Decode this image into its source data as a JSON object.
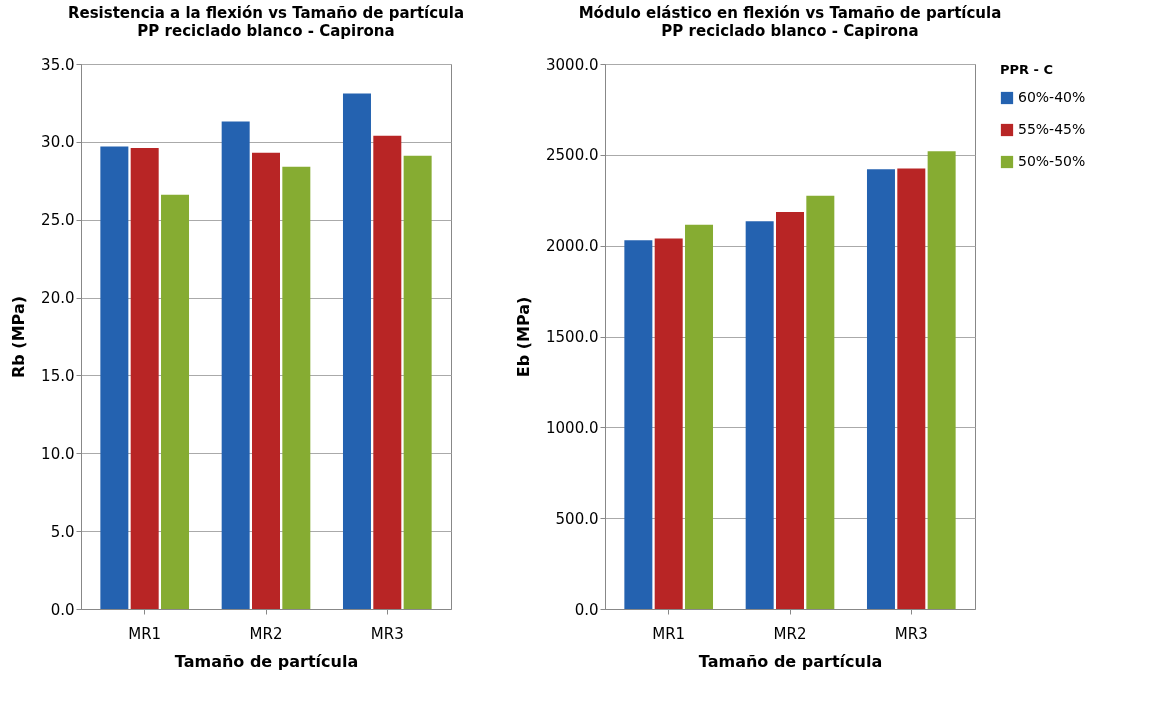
{
  "chart_data": [
    {
      "type": "bar",
      "title": "Resistencia a la flexión vs Tamaño de partícula",
      "subtitle": "PP reciclado blanco - Capirona",
      "xlabel": "Tamaño de partícula",
      "ylabel": "Rb (MPa)",
      "categories": [
        "MR1",
        "MR2",
        "MR3"
      ],
      "series": [
        {
          "color": "#2462b0",
          "values": [
            29.7,
            31.3,
            33.1
          ]
        },
        {
          "color": "#b82525",
          "values": [
            29.6,
            29.3,
            30.4
          ]
        },
        {
          "color": "#86ac32",
          "values": [
            26.6,
            28.4,
            29.1
          ]
        }
      ],
      "ylim": [
        0,
        35
      ],
      "yticks": [
        {
          "value": 0,
          "label": "0.0"
        },
        {
          "value": 5,
          "label": "5.0"
        },
        {
          "value": 10,
          "label": "10.0"
        },
        {
          "value": 15,
          "label": "15.0"
        },
        {
          "value": 20,
          "label": "20.0"
        },
        {
          "value": 25,
          "label": "25.0"
        },
        {
          "value": 30,
          "label": "30.0"
        },
        {
          "value": 35,
          "label": "35.0"
        }
      ],
      "grid": "y"
    },
    {
      "type": "bar",
      "title": "Módulo elástico en flexión vs Tamaño de partícula",
      "subtitle": "PP reciclado blanco - Capirona",
      "xlabel": "Tamaño de partícula",
      "ylabel": "Eb (MPa)",
      "legend_title": "PPR - C",
      "categories": [
        "MR1",
        "MR2",
        "MR3"
      ],
      "series": [
        {
          "name": "60%-40%",
          "color": "#2462b0",
          "values": [
            2030,
            2135,
            2420
          ]
        },
        {
          "name": "55%-45%",
          "color": "#b82525",
          "values": [
            2040,
            2185,
            2425
          ]
        },
        {
          "name": "50%-50%",
          "color": "#86ac32",
          "values": [
            2115,
            2275,
            2520
          ]
        }
      ],
      "ylim": [
        0,
        3000
      ],
      "yticks": [
        {
          "value": 0,
          "label": "0.0"
        },
        {
          "value": 500,
          "label": "500.0"
        },
        {
          "value": 1000,
          "label": "1000.0"
        },
        {
          "value": 1500,
          "label": "1500.0"
        },
        {
          "value": 2000,
          "label": "2000.0"
        },
        {
          "value": 2500,
          "label": "2500.0"
        },
        {
          "value": 3000,
          "label": "3000.0"
        }
      ],
      "grid": "y",
      "legend": "right"
    }
  ]
}
